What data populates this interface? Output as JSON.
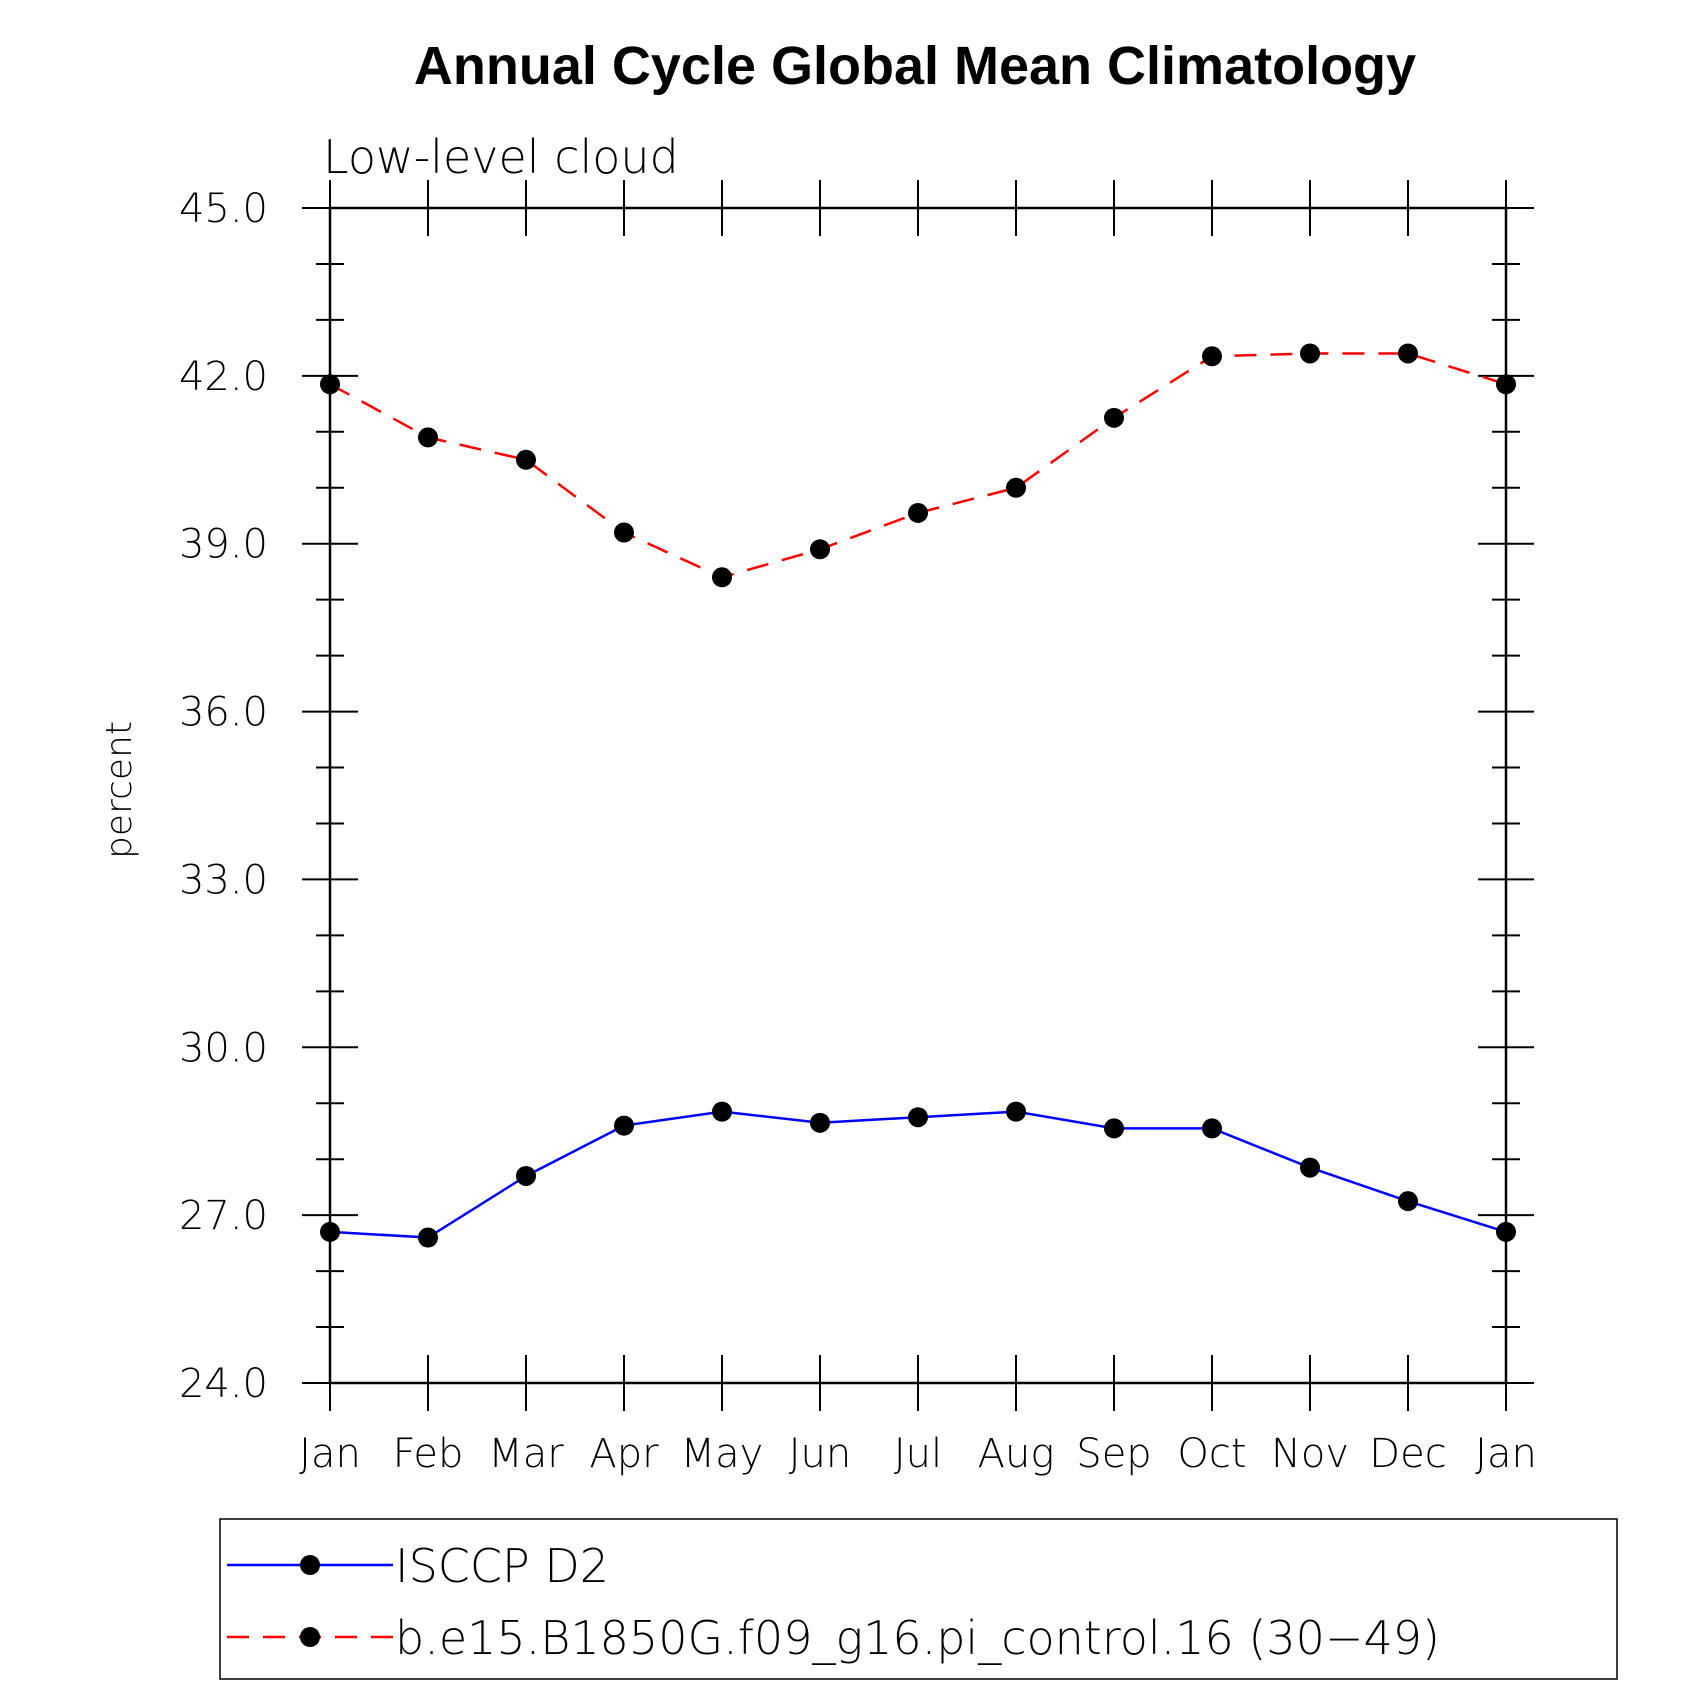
{
  "chart_data": {
    "type": "line",
    "title": "Annual Cycle Global Mean Climatology",
    "subtitle": "Low-level cloud",
    "xlabel": "",
    "ylabel": "percent",
    "categories": [
      "Jan",
      "Feb",
      "Mar",
      "Apr",
      "May",
      "Jun",
      "Jul",
      "Aug",
      "Sep",
      "Oct",
      "Nov",
      "Dec",
      "Jan"
    ],
    "ylim": [
      24.0,
      45.0
    ],
    "yticks": [
      "24.0",
      "27.0",
      "30.0",
      "33.0",
      "36.0",
      "39.0",
      "42.0",
      "45.0"
    ],
    "grid": false,
    "legend_position": "bottom",
    "series": [
      {
        "name": "ISCCP D2",
        "color": "#0000ff",
        "dash": "solid",
        "marker": "filled-circle",
        "values": [
          26.7,
          26.6,
          27.7,
          28.6,
          28.85,
          28.65,
          28.75,
          28.85,
          28.55,
          28.55,
          27.85,
          27.25,
          26.7
        ]
      },
      {
        "name": "b.e15.B1850G.f09_g16.pi_control.16 (30−49)",
        "color": "#ff0000",
        "dash": "dashed",
        "marker": "filled-circle",
        "values": [
          41.85,
          40.9,
          40.5,
          39.2,
          38.4,
          38.9,
          39.55,
          40.0,
          41.25,
          42.35,
          42.4,
          42.4,
          41.85
        ]
      }
    ]
  }
}
